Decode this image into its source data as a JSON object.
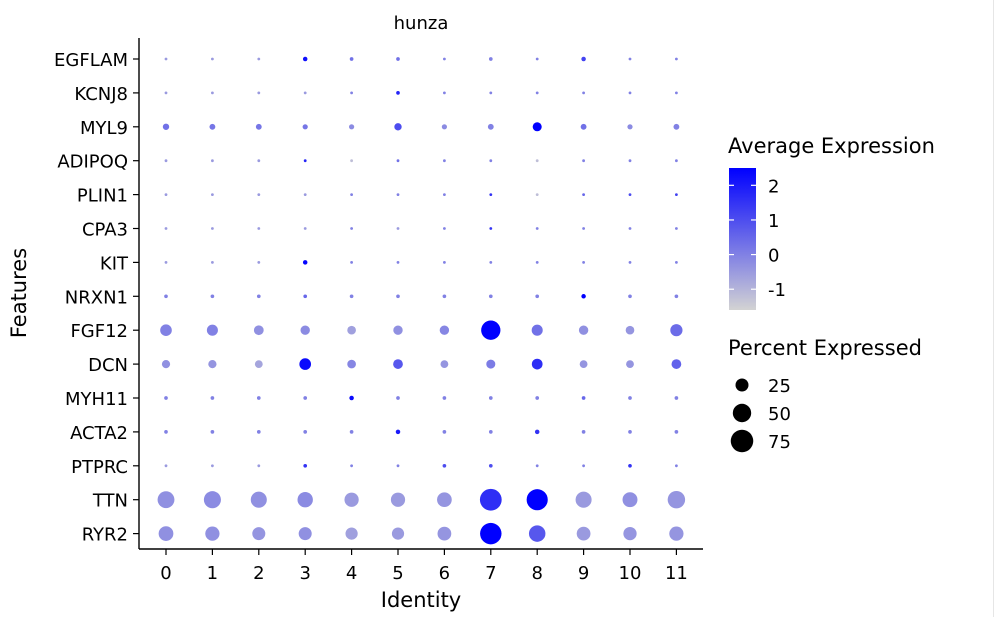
{
  "chart_data": {
    "type": "scatter",
    "subtype": "dot-plot",
    "title": "hunza",
    "xlabel": "Identity",
    "ylabel": "Features",
    "identities": [
      "0",
      "1",
      "2",
      "3",
      "4",
      "5",
      "6",
      "7",
      "8",
      "9",
      "10",
      "11"
    ],
    "features": [
      "EGFLAM",
      "KCNJ8",
      "MYL9",
      "ADIPOQ",
      "PLIN1",
      "CPA3",
      "KIT",
      "NRXN1",
      "FGF12",
      "DCN",
      "MYH11",
      "ACTA2",
      "PTPRC",
      "TTN",
      "RYR2"
    ],
    "percent_expressed": [
      [
        1,
        1,
        1,
        3,
        2,
        2,
        1,
        2,
        1,
        3,
        1,
        1
      ],
      [
        1,
        1,
        1,
        1,
        1,
        2,
        1,
        1,
        1,
        1,
        1,
        1
      ],
      [
        6,
        5,
        5,
        4,
        4,
        8,
        4,
        5,
        12,
        5,
        4,
        5
      ],
      [
        1,
        1,
        1,
        1,
        0.5,
        1,
        1,
        1,
        0.5,
        1,
        1,
        1
      ],
      [
        1,
        1,
        1,
        1,
        1,
        1,
        1,
        1,
        0.5,
        1,
        1,
        1
      ],
      [
        1,
        1,
        1,
        1,
        1,
        1,
        1,
        1,
        1,
        1,
        1,
        1
      ],
      [
        1,
        1,
        1,
        3,
        1,
        1,
        1,
        1,
        1,
        1,
        1,
        1
      ],
      [
        2,
        2,
        2,
        2,
        2,
        2,
        2,
        2,
        2,
        3,
        2,
        2
      ],
      [
        20,
        18,
        14,
        13,
        11,
        13,
        13,
        55,
        18,
        13,
        11,
        22
      ],
      [
        10,
        10,
        9,
        20,
        11,
        14,
        9,
        12,
        17,
        9,
        9,
        14
      ],
      [
        2,
        2,
        2,
        2,
        3,
        2,
        2,
        2,
        2,
        2,
        2,
        2
      ],
      [
        2,
        2,
        2,
        2,
        2,
        3,
        2,
        2,
        3,
        2,
        2,
        2
      ],
      [
        1,
        1,
        1,
        2,
        1,
        1,
        2,
        2,
        1,
        1,
        2,
        1
      ],
      [
        42,
        43,
        38,
        35,
        30,
        30,
        32,
        70,
        66,
        38,
        33,
        45
      ],
      [
        32,
        30,
        25,
        25,
        22,
        22,
        28,
        68,
        40,
        28,
        26,
        30
      ]
    ],
    "average_expression": [
      [
        -0.5,
        -0.5,
        -0.5,
        2.2,
        0.3,
        0.3,
        0,
        0,
        0,
        1.2,
        0,
        0
      ],
      [
        -0.5,
        -0.5,
        -0.5,
        -0.5,
        0,
        1.8,
        0,
        0,
        0,
        0,
        0,
        0
      ],
      [
        0.3,
        0.2,
        0.2,
        0.2,
        -0.2,
        1.0,
        -0.2,
        0,
        2.5,
        0.3,
        -0.2,
        0
      ],
      [
        -0.5,
        -0.5,
        -0.5,
        1.8,
        -1.2,
        0.3,
        0,
        0,
        -1.2,
        0,
        0,
        0
      ],
      [
        -0.5,
        -0.5,
        -0.5,
        -0.5,
        0,
        0,
        0,
        1.5,
        -1.2,
        0.5,
        1.0,
        1.2
      ],
      [
        -0.5,
        -0.5,
        -0.5,
        -0.5,
        0,
        -0.5,
        0,
        1.5,
        0,
        0,
        0,
        0
      ],
      [
        -0.5,
        -0.5,
        -0.5,
        2.4,
        0,
        0,
        0,
        0,
        0,
        0,
        0,
        0
      ],
      [
        0,
        0,
        0,
        0.5,
        0,
        0,
        0,
        0,
        0,
        2.5,
        0,
        0
      ],
      [
        0,
        0,
        -0.3,
        -0.2,
        -0.6,
        -0.3,
        -0.1,
        2.5,
        0.3,
        -0.3,
        -0.4,
        0.4
      ],
      [
        -0.3,
        -0.4,
        -0.7,
        2.3,
        -0.1,
        0.8,
        -0.4,
        0.1,
        1.6,
        -0.4,
        -0.4,
        0.6
      ],
      [
        0,
        0,
        0,
        0,
        2.3,
        0,
        0,
        0,
        0,
        0.5,
        0,
        0
      ],
      [
        0,
        0,
        0,
        0,
        0,
        2.0,
        0,
        0,
        1.5,
        0,
        0,
        0
      ],
      [
        -0.5,
        -0.5,
        -0.5,
        1.5,
        0,
        0,
        1.0,
        1.0,
        0,
        0,
        1.5,
        0
      ],
      [
        -0.3,
        -0.2,
        -0.3,
        -0.2,
        -0.5,
        -0.5,
        -0.4,
        1.6,
        2.5,
        -0.5,
        -0.3,
        -0.4
      ],
      [
        -0.3,
        -0.3,
        -0.4,
        -0.3,
        -0.6,
        -0.5,
        -0.4,
        2.5,
        0.8,
        -0.5,
        -0.4,
        -0.4
      ]
    ],
    "color_scale": {
      "low": "#d3d3d3",
      "high": "#0000ff",
      "range": [
        -1.6,
        2.5
      ]
    },
    "legend": {
      "color_title": "Average Expression",
      "color_ticks": [
        2,
        1,
        0,
        -1
      ],
      "color_tick_labels": [
        "2",
        "1",
        "0",
        "-1"
      ],
      "size_title": "Percent Expressed",
      "size_ticks": [
        25,
        50,
        75
      ],
      "size_tick_labels": [
        "25",
        "50",
        "75"
      ],
      "placement": "right"
    },
    "grid": false
  }
}
